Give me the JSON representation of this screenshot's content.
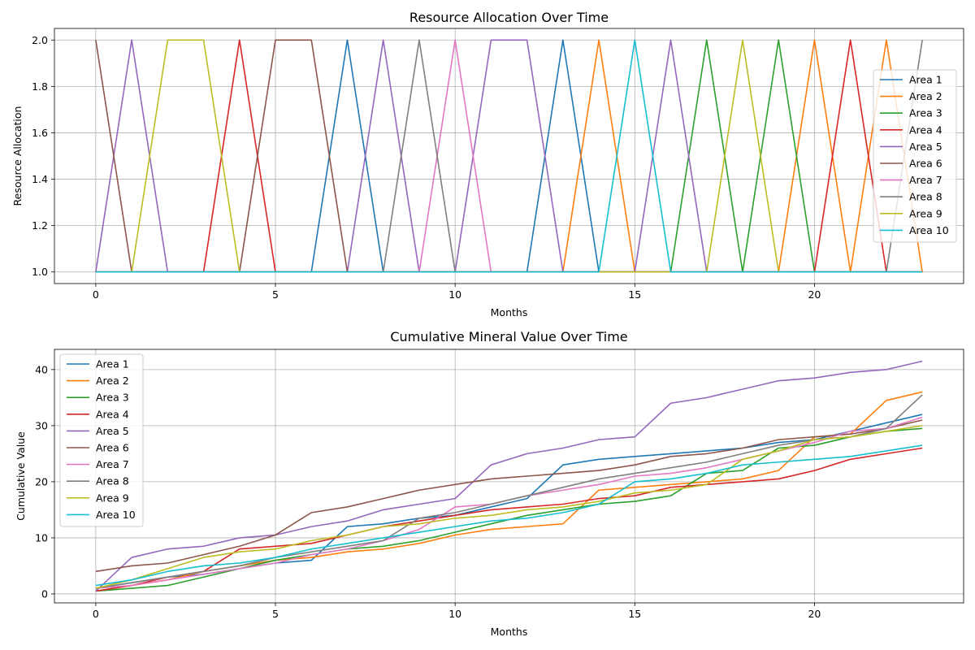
{
  "chart_data": [
    {
      "type": "line",
      "title": "Resource Allocation Over Time",
      "xlabel": "Months",
      "ylabel": "Resource Allocation",
      "xlim": [
        -1.15,
        24.15
      ],
      "ylim": [
        0.95,
        2.05
      ],
      "xticks": [
        0,
        5,
        10,
        15,
        20
      ],
      "yticks": [
        1.0,
        1.2,
        1.4,
        1.6,
        1.8,
        2.0
      ],
      "ytick_labels": [
        "1.0",
        "1.2",
        "1.4",
        "1.6",
        "1.8",
        "2.0"
      ],
      "grid": true,
      "legend_position": "right",
      "x": [
        0,
        1,
        2,
        3,
        4,
        5,
        6,
        7,
        8,
        9,
        10,
        11,
        12,
        13,
        14,
        15,
        16,
        17,
        18,
        19,
        20,
        21,
        22,
        23
      ],
      "series": [
        {
          "name": "Area 1",
          "color": "#1f77b4",
          "values": [
            1,
            1,
            1,
            1,
            1,
            1,
            1,
            2,
            1,
            1,
            1,
            1,
            1,
            2,
            1,
            1,
            1,
            1,
            1,
            1,
            1,
            1,
            1,
            1
          ]
        },
        {
          "name": "Area 2",
          "color": "#ff7f0e",
          "values": [
            1,
            1,
            1,
            1,
            1,
            1,
            1,
            1,
            1,
            1,
            1,
            1,
            1,
            1,
            2,
            1,
            1,
            1,
            1,
            1,
            2,
            1,
            2,
            1
          ]
        },
        {
          "name": "Area 3",
          "color": "#2ca02c",
          "values": [
            1,
            1,
            1,
            1,
            1,
            1,
            1,
            1,
            1,
            1,
            1,
            1,
            1,
            1,
            1,
            1,
            1,
            2,
            1,
            2,
            1,
            1,
            1,
            1
          ]
        },
        {
          "name": "Area 4",
          "color": "#d62728",
          "values": [
            1,
            1,
            1,
            1,
            2,
            1,
            1,
            1,
            1,
            1,
            1,
            1,
            1,
            1,
            1,
            1,
            1,
            1,
            1,
            1,
            1,
            2,
            1,
            1
          ]
        },
        {
          "name": "Area 5",
          "color": "#9467bd",
          "values": [
            1,
            2,
            1,
            1,
            1,
            1,
            1,
            1,
            2,
            1,
            1,
            2,
            2,
            1,
            1,
            1,
            2,
            1,
            1,
            1,
            1,
            1,
            1,
            1
          ]
        },
        {
          "name": "Area 6",
          "color": "#8c564b",
          "values": [
            2,
            1,
            1,
            1,
            1,
            2,
            2,
            1,
            1,
            1,
            1,
            1,
            1,
            1,
            1,
            1,
            1,
            1,
            1,
            1,
            1,
            1,
            1,
            1
          ]
        },
        {
          "name": "Area 7",
          "color": "#e377c2",
          "values": [
            1,
            1,
            1,
            1,
            1,
            1,
            1,
            1,
            1,
            1,
            2,
            1,
            1,
            1,
            1,
            1,
            1,
            1,
            1,
            1,
            1,
            1,
            1,
            1
          ]
        },
        {
          "name": "Area 8",
          "color": "#7f7f7f",
          "values": [
            1,
            1,
            1,
            1,
            1,
            1,
            1,
            1,
            1,
            2,
            1,
            1,
            1,
            1,
            1,
            1,
            1,
            1,
            1,
            1,
            1,
            1,
            1,
            2
          ]
        },
        {
          "name": "Area 9",
          "color": "#bcbd22",
          "values": [
            1,
            1,
            2,
            2,
            1,
            1,
            1,
            1,
            1,
            1,
            1,
            1,
            1,
            1,
            1,
            1,
            1,
            1,
            2,
            1,
            1,
            1,
            1,
            1
          ]
        },
        {
          "name": "Area 10",
          "color": "#17becf",
          "values": [
            1,
            1,
            1,
            1,
            1,
            1,
            1,
            1,
            1,
            1,
            1,
            1,
            1,
            1,
            1,
            2,
            1,
            1,
            1,
            1,
            1,
            1,
            1,
            1
          ]
        }
      ]
    },
    {
      "type": "line",
      "title": "Cumulative Mineral Value Over Time",
      "xlabel": "Months",
      "ylabel": "Cumulative Value",
      "xlim": [
        -1.15,
        24.15
      ],
      "ylim": [
        -1.6,
        43.6
      ],
      "xticks": [
        0,
        5,
        10,
        15,
        20
      ],
      "yticks": [
        0,
        10,
        20,
        30,
        40
      ],
      "ytick_labels": [
        "0",
        "10",
        "20",
        "30",
        "40"
      ],
      "grid": true,
      "legend_position": "upper left",
      "x": [
        0,
        1,
        2,
        3,
        4,
        5,
        6,
        7,
        8,
        9,
        10,
        11,
        12,
        13,
        14,
        15,
        16,
        17,
        18,
        19,
        20,
        21,
        22,
        23
      ],
      "series": [
        {
          "name": "Area 1",
          "color": "#1f77b4",
          "values": [
            1.0,
            2.0,
            3.0,
            3.5,
            4.5,
            5.5,
            6.0,
            12.0,
            12.5,
            13.5,
            14.0,
            15.5,
            17.0,
            23.0,
            24.0,
            24.5,
            25.0,
            25.5,
            26.0,
            27.0,
            27.5,
            29.0,
            30.5,
            32.0
          ]
        },
        {
          "name": "Area 2",
          "color": "#ff7f0e",
          "values": [
            0.5,
            1.5,
            2.5,
            4.0,
            5.0,
            6.0,
            6.5,
            7.5,
            8.0,
            9.0,
            10.5,
            11.5,
            12.0,
            12.5,
            18.5,
            19.0,
            19.5,
            20.0,
            20.5,
            22.0,
            28.0,
            28.5,
            34.5,
            36.0
          ]
        },
        {
          "name": "Area 3",
          "color": "#2ca02c",
          "values": [
            0.5,
            1.0,
            1.5,
            3.0,
            4.5,
            6.0,
            7.0,
            8.0,
            8.5,
            9.5,
            11.0,
            12.5,
            14.0,
            15.0,
            16.0,
            16.5,
            17.5,
            21.5,
            22.0,
            26.0,
            26.5,
            28.0,
            29.0,
            29.5
          ]
        },
        {
          "name": "Area 4",
          "color": "#d62728",
          "values": [
            0.5,
            1.5,
            3.0,
            4.0,
            8.0,
            8.5,
            9.0,
            10.5,
            12.0,
            13.0,
            14.0,
            15.0,
            15.5,
            16.0,
            17.0,
            17.5,
            19.0,
            19.5,
            20.0,
            20.5,
            22.0,
            24.0,
            25.0,
            26.0
          ]
        },
        {
          "name": "Area 5",
          "color": "#9467bd",
          "values": [
            0.5,
            6.5,
            8.0,
            8.5,
            10.0,
            10.5,
            12.0,
            13.0,
            15.0,
            16.0,
            17.0,
            23.0,
            25.0,
            26.0,
            27.5,
            28.0,
            34.0,
            35.0,
            36.5,
            38.0,
            38.5,
            39.5,
            40.0,
            41.5
          ]
        },
        {
          "name": "Area 6",
          "color": "#8c564b",
          "values": [
            4.0,
            5.0,
            5.5,
            7.0,
            8.5,
            10.5,
            14.5,
            15.5,
            17.0,
            18.5,
            19.5,
            20.5,
            21.0,
            21.5,
            22.0,
            23.0,
            24.5,
            25.0,
            26.0,
            27.5,
            28.0,
            28.5,
            29.5,
            31.0
          ]
        },
        {
          "name": "Area 7",
          "color": "#e377c2",
          "values": [
            1.0,
            1.5,
            2.5,
            3.5,
            4.5,
            5.5,
            7.0,
            8.0,
            9.5,
            11.5,
            15.5,
            16.0,
            17.5,
            18.5,
            19.5,
            21.0,
            21.5,
            22.5,
            24.0,
            25.5,
            27.0,
            29.0,
            29.5,
            31.5
          ]
        },
        {
          "name": "Area 8",
          "color": "#7f7f7f",
          "values": [
            1.0,
            2.0,
            3.0,
            4.0,
            5.0,
            6.5,
            7.5,
            8.5,
            9.5,
            13.5,
            14.5,
            16.0,
            17.5,
            19.0,
            20.5,
            21.5,
            22.5,
            23.5,
            25.0,
            26.5,
            27.5,
            28.0,
            29.5,
            35.5
          ]
        },
        {
          "name": "Area 9",
          "color": "#bcbd22",
          "values": [
            1.0,
            2.5,
            4.5,
            6.5,
            7.5,
            8.0,
            9.5,
            10.5,
            12.0,
            12.5,
            13.5,
            14.0,
            15.0,
            15.5,
            16.5,
            18.0,
            18.5,
            19.5,
            24.0,
            25.5,
            27.5,
            28.0,
            29.0,
            30.0
          ]
        },
        {
          "name": "Area 10",
          "color": "#17becf",
          "values": [
            1.5,
            2.5,
            4.0,
            5.0,
            5.5,
            6.5,
            8.0,
            9.0,
            10.0,
            11.0,
            12.0,
            13.0,
            13.5,
            14.5,
            16.0,
            20.0,
            20.5,
            21.5,
            23.0,
            23.5,
            24.0,
            24.5,
            25.5,
            26.5
          ]
        }
      ]
    }
  ]
}
